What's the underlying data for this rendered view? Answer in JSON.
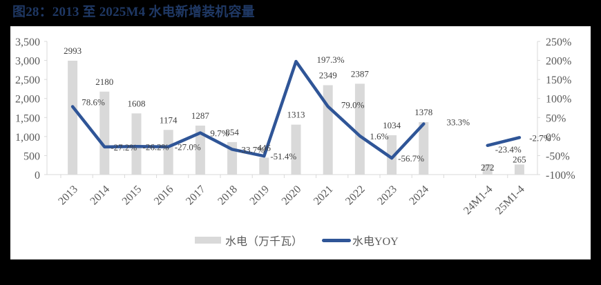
{
  "figure": {
    "title": "图28：2013 至 2025M4 水电新增装机容量"
  },
  "colors": {
    "bar": "#D9D9D9",
    "line": "#2F5597",
    "axis": "#D9D9D9",
    "title": "#1F3864",
    "text": "#595959"
  },
  "legend": {
    "bar_label": "水电（万千瓦）",
    "line_label": "水电YOY"
  },
  "chart_data": {
    "type": "bar+line",
    "title": "图28：2013 至 2025M4 水电新增装机容量",
    "categories": [
      "2013",
      "2014",
      "2015",
      "2016",
      "2017",
      "2018",
      "2019",
      "2020",
      "2021",
      "2022",
      "2023",
      "2024",
      "",
      "24M1-4",
      "25M1-4"
    ],
    "series": [
      {
        "name": "水电（万千瓦）",
        "type": "bar",
        "axis": "left",
        "values": [
          2993,
          2180,
          1608,
          1174,
          1287,
          854,
          446,
          1313,
          2349,
          2387,
          1034,
          1378,
          null,
          272,
          265
        ],
        "labels": [
          "2993",
          "2180",
          "1608",
          "1174",
          "1287",
          "854",
          "446",
          "1313",
          "2349",
          "2387",
          "1034",
          "1378",
          "",
          "272",
          "265"
        ]
      },
      {
        "name": "水电YOY",
        "type": "line",
        "axis": "right",
        "values": [
          78.6,
          -27.2,
          -26.2,
          -27.0,
          9.7,
          -33.7,
          -51.4,
          197.3,
          79.0,
          1.6,
          -56.7,
          33.3,
          null,
          -23.4,
          -2.7
        ],
        "labels": [
          "78.6%",
          "-27.2%",
          "-26.2%",
          "-27.0%",
          "9.7%",
          "-33.7%",
          "-51.4%",
          "197.3%",
          "79.0%",
          "1.6%",
          "-56.7%",
          "33.3%",
          "",
          "-23.4%",
          "-2.7%"
        ]
      }
    ],
    "left_axis": {
      "ylim": [
        0,
        3500
      ],
      "ticks": [
        0,
        500,
        1000,
        1500,
        2000,
        2500,
        3000,
        3500
      ],
      "tick_labels": [
        "0",
        "500",
        "1,000",
        "1,500",
        "2,000",
        "2,500",
        "3,000",
        "3,500"
      ]
    },
    "right_axis": {
      "ylim": [
        -100,
        250
      ],
      "ticks": [
        -100,
        -50,
        0,
        50,
        100,
        150,
        200,
        250
      ],
      "tick_labels": [
        "-100%",
        "-50%",
        "0%",
        "50%",
        "100%",
        "150%",
        "200%",
        "250%"
      ]
    },
    "xlabel": "",
    "ylabel": "",
    "grid": false,
    "legend_position": "bottom"
  }
}
